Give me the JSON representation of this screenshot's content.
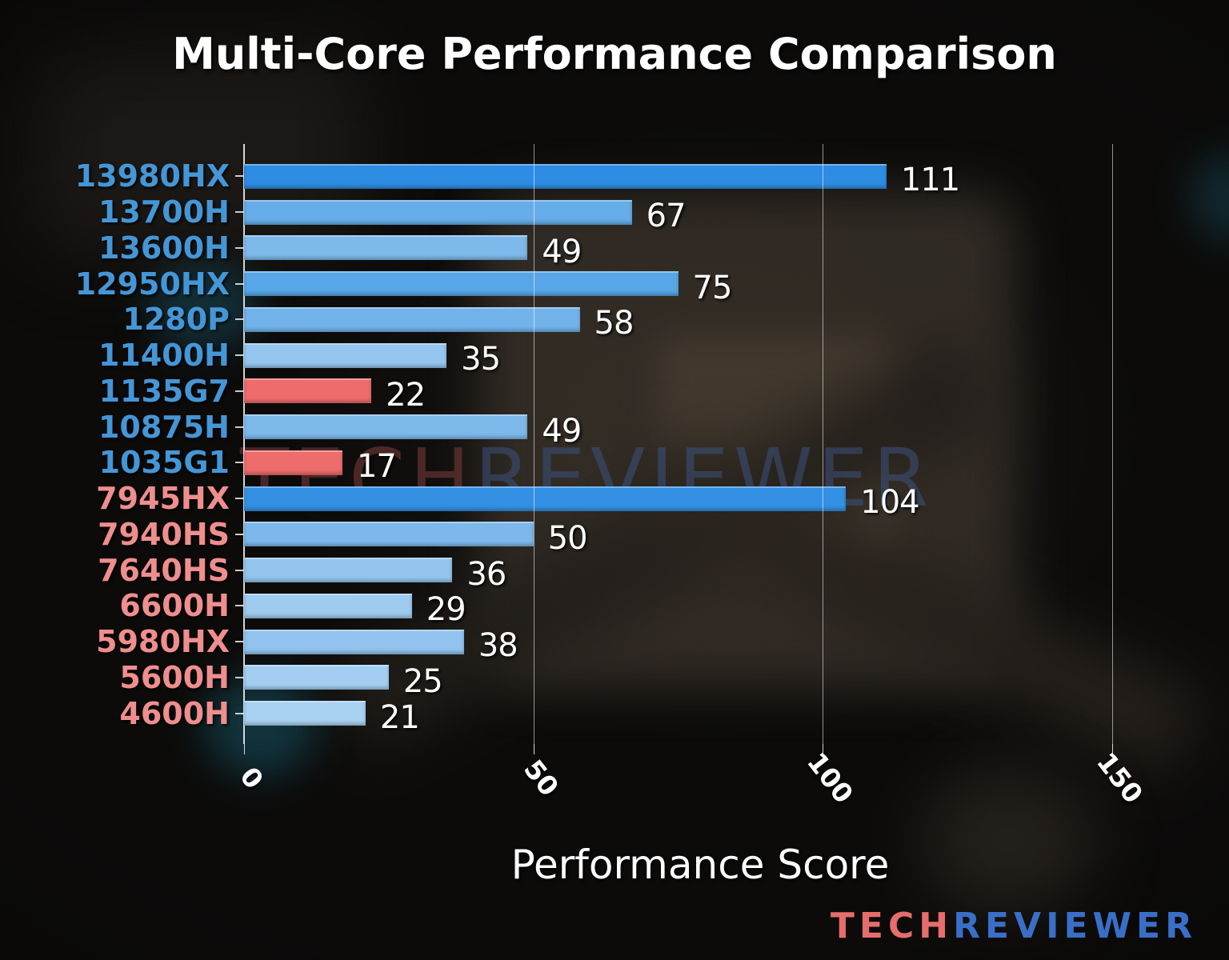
{
  "chart_data": {
    "type": "bar",
    "orientation": "horizontal",
    "title": "Multi-Core Performance Comparison",
    "xlabel": "Performance Score",
    "xlim": [
      0,
      157
    ],
    "xticks": [
      0,
      50,
      100,
      150
    ],
    "grid": "vertical-gridlines-at-xticks",
    "legend_position": "none",
    "categories": [
      "13980HX",
      "13700H",
      "13600H",
      "12950HX",
      "1280P",
      "11400H",
      "1135G7",
      "10875H",
      "1035G1",
      "7945HX",
      "7940HS",
      "7640HS",
      "6600H",
      "5980HX",
      "5600H",
      "4600H"
    ],
    "values": [
      111,
      67,
      49,
      75,
      58,
      35,
      22,
      49,
      17,
      104,
      50,
      36,
      29,
      38,
      25,
      21
    ],
    "bar_colors": [
      "#2e8ce2",
      "#66ade9",
      "#7db9eb",
      "#58a6e7",
      "#71b3ea",
      "#95c6ef",
      "#ee6c6c",
      "#7db9eb",
      "#ee6c6c",
      "#3390e3",
      "#7cb8eb",
      "#94c5ee",
      "#9ecbf0",
      "#91c3ee",
      "#a4cef1",
      "#a9d1f2"
    ],
    "label_colors": [
      "#4596d6",
      "#4596d6",
      "#4596d6",
      "#4596d6",
      "#4596d6",
      "#4596d6",
      "#4596d6",
      "#4596d6",
      "#4596d6",
      "#ef8e8e",
      "#ef8e8e",
      "#ef8e8e",
      "#ef8e8e",
      "#ef8e8e",
      "#ef8e8e",
      "#ef8e8e"
    ],
    "value_label_color": "#ffffff"
  },
  "watermark": {
    "tech": "TECH",
    "reviewer": "REVIEWER"
  },
  "logo": {
    "tech": "TECH",
    "reviewer": "REVIEWER"
  },
  "colors": {
    "background": "#0c0b0a",
    "intel_label": "#4596d6",
    "amd_label": "#ef8e8e",
    "highlight_bar": "#ee6c6c",
    "gridline": "rgba(255,255,255,0.55)"
  }
}
